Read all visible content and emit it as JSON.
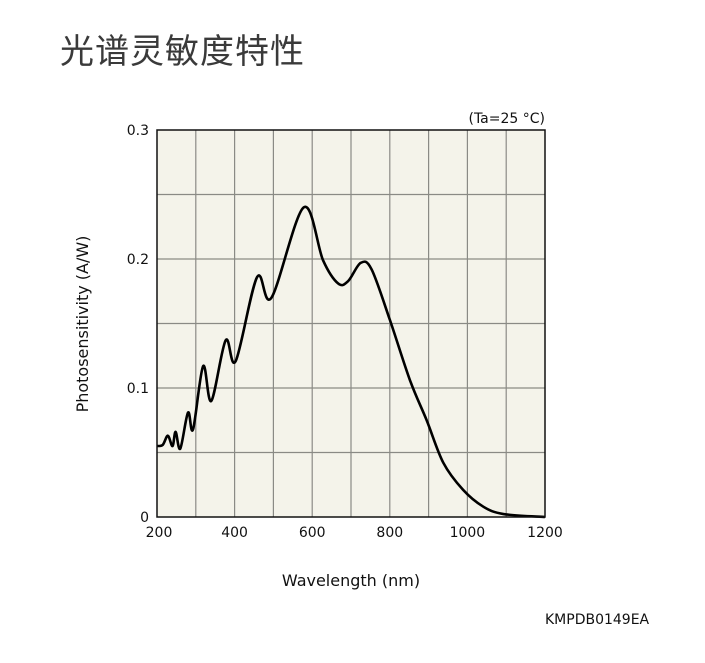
{
  "page_title": "光谱灵敏度特性",
  "figure_code": "KMPDB0149EA",
  "chart_data": {
    "type": "line",
    "title": "光谱灵敏度特性",
    "annotation": "(Ta=25 °C)",
    "xlabel": "Wavelength (nm)",
    "ylabel": "Photosensitivity (A/W)",
    "xlim": [
      200,
      1200
    ],
    "ylim": [
      0,
      0.3
    ],
    "xticks": [
      200,
      400,
      600,
      800,
      1000,
      1200
    ],
    "xtick_labels": [
      "200",
      "400",
      "600",
      "800",
      "1000",
      "1200"
    ],
    "yticks": [
      0,
      0.1,
      0.2,
      0.3
    ],
    "ytick_labels": [
      "0",
      "0.1",
      "0.2",
      "0.3"
    ],
    "x_grid_step": 100,
    "y_grid_step": 0.05,
    "grid": true,
    "colors": {
      "plot_bg": "#f4f3ea",
      "grid": "#8a8a85",
      "line": "#000000"
    },
    "series": [
      {
        "name": "Photosensitivity",
        "x": [
          200,
          215,
          228,
          240,
          248,
          260,
          280,
          293,
          319,
          340,
          377,
          403,
          458,
          495,
          578,
          628,
          667,
          693,
          725,
          753,
          800,
          852,
          895,
          938,
          989,
          1041,
          1093,
          1200
        ],
        "y": [
          0.055,
          0.056,
          0.063,
          0.055,
          0.066,
          0.053,
          0.081,
          0.068,
          0.117,
          0.09,
          0.137,
          0.121,
          0.186,
          0.17,
          0.24,
          0.199,
          0.181,
          0.183,
          0.197,
          0.192,
          0.153,
          0.106,
          0.075,
          0.042,
          0.021,
          0.008,
          0.0023,
          0
        ]
      }
    ]
  }
}
